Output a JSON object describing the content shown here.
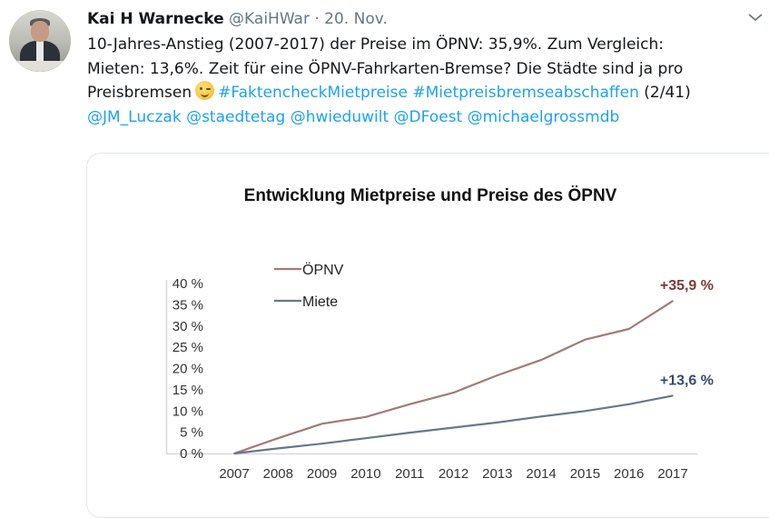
{
  "tweet": {
    "author_name": "Kai H Warnecke",
    "author_handle": "@KaiHWar",
    "separator": "·",
    "date": "20. Nov.",
    "text_lines": [
      "10-Jahres-Anstieg (2007-2017) der Preise im ÖPNV: 35,9%. Zum Vergleich:",
      "Mieten: 13,6%. Zeit für eine ÖPNV-Fahrkarten-Bremse? Die Städte sind ja pro"
    ],
    "line3_text": "Preisbremsen",
    "emoji": "winking-face",
    "hashtags": [
      "#FaktencheckMietpreise",
      "#Mietpreisbremseabschaffen"
    ],
    "thread_counter": "(2/41)",
    "mentions": [
      "@JM_Luczak",
      "@staedtetag",
      "@hwieduwilt",
      "@DFoest",
      "@michaelgrossmdb"
    ],
    "link_color": "#1da1f2"
  },
  "chart_data": {
    "type": "line",
    "title": "Entwicklung Mietpreise und Preise des ÖPNV",
    "xlabel": "",
    "ylabel": "",
    "x": [
      2007,
      2008,
      2009,
      2010,
      2011,
      2012,
      2013,
      2014,
      2015,
      2016,
      2017
    ],
    "x_tick_labels": [
      "2007",
      "2008",
      "2009",
      "2010",
      "2011",
      "2012",
      "2013",
      "2014",
      "2015",
      "2016",
      "2017"
    ],
    "y_ticks": [
      0,
      5,
      10,
      15,
      20,
      25,
      30,
      35,
      40
    ],
    "y_tick_labels": [
      "0 %",
      "5 %",
      "10 %",
      "15 %",
      "20 %",
      "25 %",
      "30 %",
      "35 %",
      "40 %"
    ],
    "ylim": [
      0,
      40
    ],
    "grid": false,
    "legend_placement": "top-left",
    "series": [
      {
        "name": "ÖPNV",
        "color": "#a07a78",
        "label_color": "#7b3a3a",
        "values": [
          0,
          3.6,
          7.0,
          8.6,
          11.6,
          14.3,
          18.4,
          22.0,
          26.8,
          29.3,
          35.9
        ],
        "end_label": "+35,9 %"
      },
      {
        "name": "Miete",
        "color": "#66778e",
        "label_color": "#3a4a68",
        "values": [
          0,
          1.2,
          2.3,
          3.6,
          4.9,
          6.1,
          7.3,
          8.7,
          10.0,
          11.6,
          13.6
        ],
        "end_label": "+13,6 %"
      }
    ]
  }
}
